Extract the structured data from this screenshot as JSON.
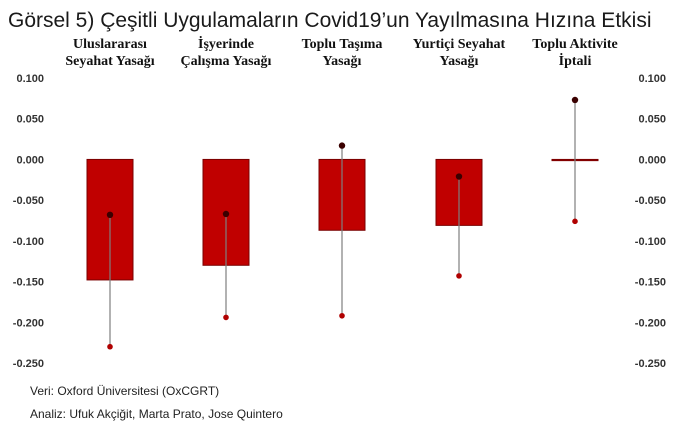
{
  "title": "Görsel 5) Çeşitli Uygulamaların Covid19’un Yayılmasına Hızına Etkisi",
  "source_note": "Veri: Oxford Üniversitesi (OxCGRT)",
  "analysis_note": "Analiz: Ufuk Akçiğit, Marta Prato, Jose Quintero",
  "colors": {
    "bar": "#c00000",
    "bar_edge": "#7a0000",
    "whisker": "#7f7f7f",
    "point": "#3a0000",
    "lower_dot": "#b00000"
  },
  "chart_data": {
    "type": "bar",
    "categories": [
      [
        "Uluslararası",
        "Seyahat Yasağı"
      ],
      [
        "İşyerinde",
        "Çalışma Yasağı"
      ],
      [
        "Toplu Taşıma",
        "Yasağı"
      ],
      [
        "Yurtiçi Seyahat",
        "Yasağı"
      ],
      [
        "Toplu Aktivite",
        "İptali"
      ]
    ],
    "values": [
      -0.148,
      -0.13,
      -0.087,
      -0.081,
      -0.001
    ],
    "point_estimates": [
      -0.068,
      -0.067,
      0.017,
      -0.021,
      0.073
    ],
    "lower": [
      -0.23,
      -0.194,
      -0.192,
      -0.143,
      -0.076
    ],
    "upper": [
      -0.068,
      -0.067,
      0.017,
      -0.021,
      0.073
    ],
    "ylim": [
      -0.25,
      0.1
    ],
    "yticks": [
      "0.100",
      "0.050",
      "0.000",
      "-0.050",
      "-0.100",
      "-0.150",
      "-0.200",
      "-0.250"
    ],
    "ytick_values": [
      0.1,
      0.05,
      0.0,
      -0.05,
      -0.1,
      -0.15,
      -0.2,
      -0.25
    ],
    "grid": false
  }
}
